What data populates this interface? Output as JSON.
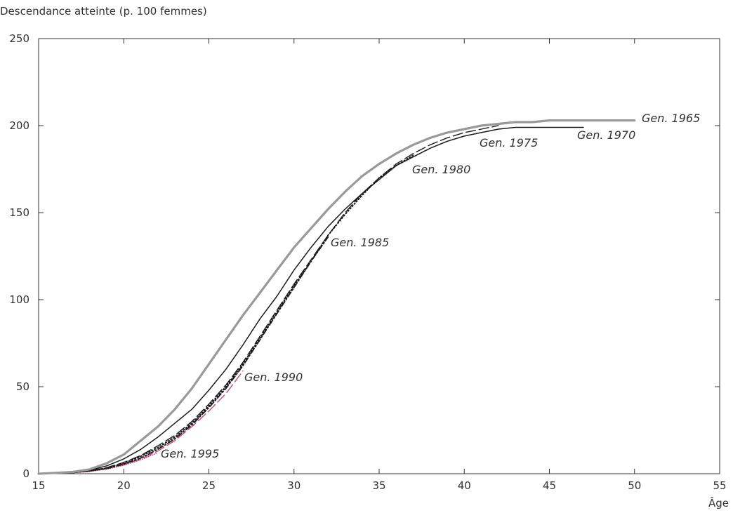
{
  "chart_data": {
    "type": "line",
    "ylabel": "Descendance atteinte (p. 100 femmes)",
    "xlabel": "Âge",
    "xlim": [
      15,
      55
    ],
    "ylim": [
      0,
      250
    ],
    "xticks": [
      15,
      20,
      25,
      30,
      35,
      40,
      45,
      50,
      55
    ],
    "yticks": [
      0,
      50,
      100,
      150,
      200,
      250
    ],
    "grid": false,
    "series": [
      {
        "name": "Gen. 1965",
        "color": "#999999",
        "style": "solid-thick",
        "x": [
          15,
          16,
          17,
          18,
          19,
          20,
          21,
          22,
          23,
          24,
          25,
          26,
          27,
          28,
          29,
          30,
          31,
          32,
          33,
          34,
          35,
          36,
          37,
          38,
          39,
          40,
          41,
          42,
          43,
          44,
          45,
          46,
          47,
          48,
          49,
          50
        ],
        "y": [
          0,
          0.5,
          1,
          2.5,
          6,
          11,
          19,
          27,
          37,
          49,
          63,
          77,
          91,
          104,
          117,
          130,
          141,
          152,
          162,
          171,
          178,
          184,
          189,
          193,
          196,
          198,
          200,
          201,
          202,
          202,
          203,
          203,
          203,
          203,
          203,
          203
        ]
      },
      {
        "name": "Gen. 1970",
        "color": "#1a1a1a",
        "style": "solid",
        "x": [
          15,
          16,
          17,
          18,
          19,
          20,
          21,
          22,
          23,
          24,
          25,
          26,
          27,
          28,
          29,
          30,
          31,
          32,
          33,
          34,
          35,
          36,
          37,
          38,
          39,
          40,
          41,
          42,
          43,
          44,
          45,
          46,
          47
        ],
        "y": [
          0,
          0.3,
          0.8,
          2,
          4.5,
          8.5,
          14,
          21,
          29,
          37,
          48,
          60,
          74,
          89,
          102,
          117,
          130,
          142,
          152,
          161,
          169,
          177,
          182,
          187,
          191,
          194,
          196,
          198,
          199,
          199,
          199,
          199,
          199
        ]
      },
      {
        "name": "Gen. 1975",
        "color": "#1a1a1a",
        "style": "long-dash",
        "x": [
          15,
          16,
          17,
          18,
          19,
          20,
          21,
          22,
          23,
          24,
          25,
          26,
          27,
          28,
          29,
          30,
          31,
          32,
          33,
          34,
          35,
          36,
          37,
          38,
          39,
          40,
          41,
          42
        ],
        "y": [
          0,
          0.3,
          0.7,
          1.7,
          3.5,
          6.5,
          10.5,
          16,
          22,
          30,
          40,
          51,
          64,
          79,
          94,
          109,
          123,
          137,
          150,
          161,
          170,
          178,
          184,
          189,
          193,
          196,
          198,
          200
        ]
      },
      {
        "name": "Gen. 1980",
        "color": "#1a1a1a",
        "style": "dotted",
        "x": [
          15,
          16,
          17,
          18,
          19,
          20,
          21,
          22,
          23,
          24,
          25,
          26,
          27,
          28,
          29,
          30,
          31,
          32,
          33,
          34,
          35,
          36,
          37
        ],
        "y": [
          0,
          0.3,
          0.7,
          1.6,
          3.2,
          6,
          10,
          15,
          21,
          29,
          39,
          50,
          63,
          78,
          93,
          108,
          122,
          137,
          149,
          160,
          170,
          177,
          183
        ]
      },
      {
        "name": "Gen. 1985",
        "color": "#1a1a1a",
        "style": "dash-dot",
        "x": [
          15,
          16,
          17,
          18,
          19,
          20,
          21,
          22,
          23,
          24,
          25,
          26,
          27,
          28,
          29,
          30,
          31,
          32
        ],
        "y": [
          0,
          0.3,
          0.7,
          1.6,
          3,
          5.5,
          9,
          14,
          20,
          28,
          38,
          49,
          62,
          77,
          92,
          107,
          122,
          136
        ]
      },
      {
        "name": "Gen. 1990",
        "color": "#c4467e",
        "style": "long-dash",
        "x": [
          15,
          16,
          17,
          18,
          19,
          20,
          21,
          22,
          23,
          24,
          25,
          26,
          27
        ],
        "y": [
          0,
          0.3,
          0.7,
          1.5,
          3,
          5.2,
          8.5,
          13,
          19,
          27,
          36,
          46,
          59
        ]
      },
      {
        "name": "Gen. 1995",
        "color": "#c4467e",
        "style": "fine-dotted",
        "x": [
          15,
          16,
          17,
          18,
          19,
          20,
          21,
          22
        ],
        "y": [
          0,
          0.2,
          0.5,
          1.2,
          2.6,
          4.8,
          8,
          12
        ]
      }
    ],
    "labels": [
      {
        "text": "Gen. 1965",
        "series": "Gen. 1965"
      },
      {
        "text": "Gen. 1970",
        "series": "Gen. 1970"
      },
      {
        "text": "Gen. 1975",
        "series": "Gen. 1975"
      },
      {
        "text": "Gen. 1980",
        "series": "Gen. 1980"
      },
      {
        "text": "Gen. 1985",
        "series": "Gen. 1985"
      },
      {
        "text": "Gen. 1990",
        "series": "Gen. 1990"
      },
      {
        "text": "Gen. 1995",
        "series": "Gen. 1995"
      }
    ]
  }
}
